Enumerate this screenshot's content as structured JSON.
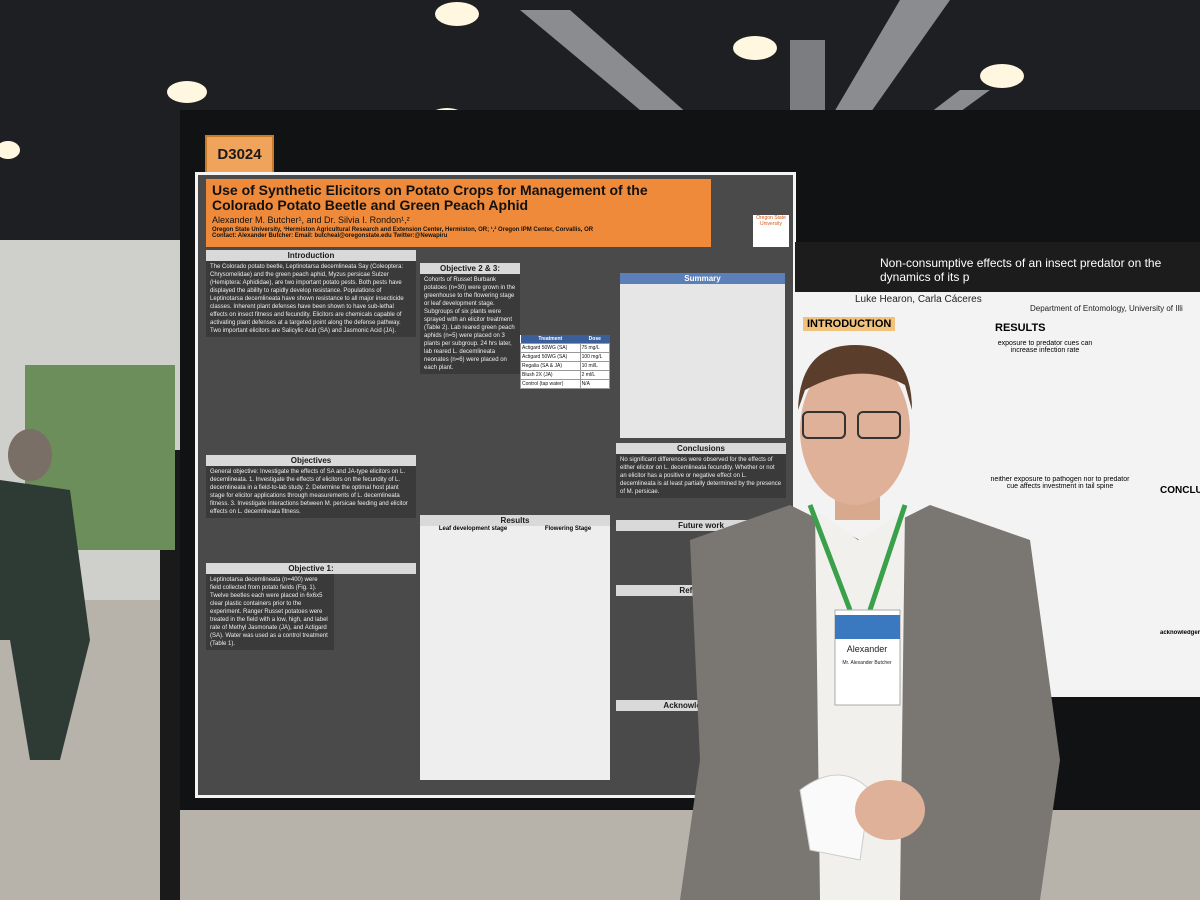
{
  "booth": "D3024",
  "left_poster": {
    "title": "Use of Synthetic Elicitors on Potato Crops for Management of the Colorado Potato Beetle and Green Peach Aphid",
    "authors": "Alexander M. Butcher¹, and Dr. Silvia I. Rondon¹,²",
    "affiliation": "Oregon State University, ¹Hermiston Agricultural Research and Extension Center, Hermiston, OR; ¹,² Oregon IPM Center, Corvallis, OR",
    "contact": "Contact: Alexander Butcher: Email: butcheal@oregonstate.edu Twitter:@Newapiru",
    "logo": "Oregon State University",
    "intro_heading": "Introduction",
    "intro_text": "The Colorado potato beetle, Leptinotarsa decemlineata Say (Coleoptera: Chrysomelidae) and the green peach aphid, Myzus persicae Sulzer (Hemiptera: Aphididae), are two important potato pests. Both pests have displayed the ability to rapidly develop resistance. Populations of Leptinotarsa decemlineata have shown resistance to all major insecticide classes. Inherent plant defenses have been shown to have sub-lethal effects on insect fitness and fecundity. Elicitors are chemicals capable of activating plant defenses at a targeted point along the defense pathway. Two important elicitors are Salicylic Acid (SA) and Jasmonic Acid (JA).",
    "objectives_heading": "Objectives",
    "objectives_text": "General objective: Investigate the effects of SA and JA-type elicitors on L. decemlineata. 1. Investigate the effects of elicitors on the fecundity of L. decemlineata in a field-to-lab study. 2. Determine the optimal host plant stage for elicitor applications through measurements of L. decemlineata fitness. 3. Investigate interactions between M. persicae feeding and elicitor effects on L. decemlineata fitness.",
    "obj1_heading": "Objective 1:",
    "obj1_text": "Leptinotarsa decemlineata (n=400) were field collected from potato fields (Fig. 1). Twelve beetles each were placed in 6x6x5 clear plastic containers prior to the experiment. Ranger Russet potatoes were treated in the field with a low, high, and label rate of Methyl Jasmonate (JA), and Actigard (SA). Water was used as a control treatment (Table 1).",
    "obj23_heading": "Objective 2 & 3:",
    "obj23_text": "Cohorts of Russet Burbank potatoes (n=30) were grown in the greenhouse to the flowering stage or leaf development stage. Subgroups of six plants were sprayed with an elicitor treatment (Table 2). Lab reared green peach aphids (n=5) were placed on 3 plants per subgroup. 24 hrs later, lab reared L. decemlineata neonates (n=6) were placed on each plant.",
    "table_header": [
      "Treatment",
      "Dose"
    ],
    "table_rows": [
      [
        "Actigard 50WG (SA)",
        "75 mg/L"
      ],
      [
        "Actigard 50WG (SA)",
        "100 mg/L"
      ],
      [
        "Regalia (SA & JA)",
        "10 ml/L"
      ],
      [
        "Blush 2X (JA)",
        "2 ml/L"
      ],
      [
        "Control (tap water)",
        "N/A"
      ]
    ],
    "summary_heading": "Summary",
    "conclusions_heading": "Conclusions",
    "conclusions_text": "No significant differences were observed for the effects of either elicitor on L. decemlineata fecundity. Whether or not an elicitor has a positive or negative effect on L. decemlineata is at least partially determined by the presence of M. persicae.",
    "results_heading": "Results",
    "leaf_heading": "Leaf development stage",
    "flower_heading": "Flowering Stage",
    "future_heading": "Future work",
    "references_heading": "References",
    "ack_heading": "Acknowledgements"
  },
  "right_poster": {
    "title": "Non-consumptive effects of an insect predator on the dynamics of its p",
    "authors": "Luke Hearon, Carla Cáceres",
    "department": "Department of Entomology, University of Illi",
    "intro_heading": "INTRODUCTION",
    "results_heading": "RESULTS",
    "result1": "exposure to predator cues can increase infection rate",
    "result2": "neither exposure to pathogen nor to predator cue affects investment in tail spine",
    "conclusion_heading": "CONCLU",
    "ack_heading": "acknowledgements"
  },
  "badge": {
    "name": "Alexander",
    "detail": "Mr. Alexander Butcher"
  }
}
